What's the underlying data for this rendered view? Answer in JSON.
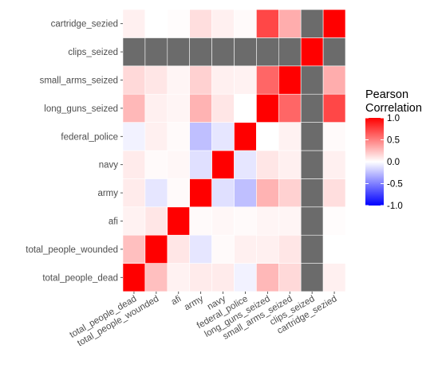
{
  "chart_data": {
    "type": "heatmap",
    "title": "",
    "xlabel": "",
    "ylabel": "",
    "x_categories": [
      "total_people_dead",
      "total_people_wounded",
      "afi",
      "army",
      "navy",
      "federal_police",
      "long_guns_seized",
      "small_arms_seized",
      "clips_seized",
      "cartridge_sezied"
    ],
    "y_categories": [
      "total_people_dead",
      "total_people_wounded",
      "afi",
      "army",
      "navy",
      "federal_police",
      "long_guns_seized",
      "small_arms_seized",
      "clips_seized",
      "cartridge_sezied"
    ],
    "values": [
      [
        1.0,
        0.25,
        0.05,
        0.08,
        0.08,
        -0.05,
        0.28,
        0.15,
        null,
        0.06
      ],
      [
        0.25,
        1.0,
        0.1,
        -0.1,
        0.02,
        0.06,
        0.06,
        0.1,
        null,
        0.0
      ],
      [
        0.05,
        0.1,
        1.0,
        0.02,
        0.03,
        0.02,
        0.04,
        0.04,
        null,
        0.01
      ],
      [
        0.08,
        -0.1,
        0.02,
        1.0,
        -0.12,
        -0.25,
        0.3,
        0.18,
        null,
        0.13
      ],
      [
        0.08,
        0.02,
        0.03,
        -0.12,
        1.0,
        -0.1,
        0.1,
        0.06,
        null,
        0.06
      ],
      [
        -0.05,
        0.06,
        0.02,
        -0.25,
        -0.1,
        1.0,
        0.0,
        0.05,
        null,
        0.02
      ],
      [
        0.28,
        0.06,
        0.04,
        0.3,
        0.1,
        0.0,
        1.0,
        0.6,
        null,
        0.72
      ],
      [
        0.15,
        0.1,
        0.04,
        0.18,
        0.06,
        0.05,
        0.6,
        1.0,
        null,
        0.32
      ],
      [
        null,
        null,
        null,
        null,
        null,
        null,
        null,
        null,
        1.0,
        null
      ],
      [
        0.06,
        0.0,
        0.01,
        0.13,
        0.06,
        0.02,
        0.72,
        0.32,
        null,
        1.0
      ]
    ],
    "na_color": "#6b6b6b",
    "color_scale": {
      "low": "#0000ff",
      "mid": "#ffffff",
      "high": "#ff0000",
      "limits": [
        -1,
        1
      ]
    },
    "legend": {
      "title_lines": [
        "Pearson",
        "Correlation"
      ],
      "ticks": [
        1.0,
        0.5,
        0.0,
        -0.5,
        -1.0
      ],
      "tick_labels": [
        "1.0",
        "0.5",
        "0.0",
        "-0.5",
        "-1.0"
      ],
      "position": "right"
    },
    "grid": false
  }
}
